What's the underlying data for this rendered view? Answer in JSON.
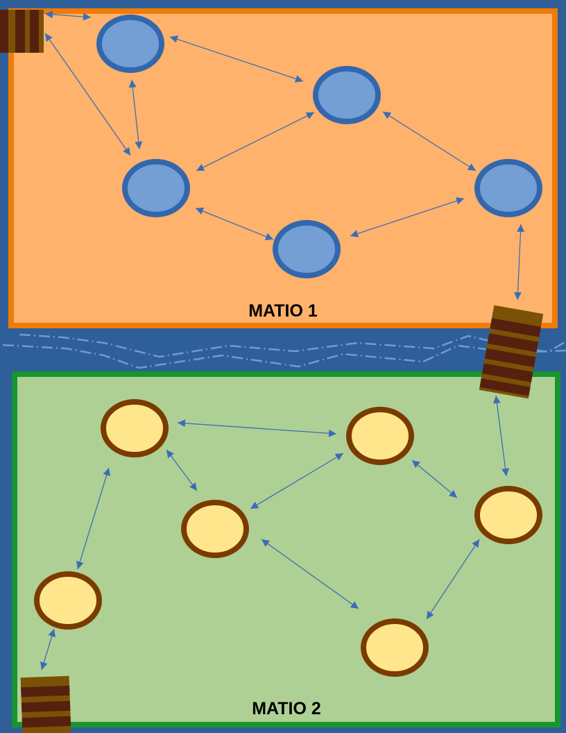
{
  "colors": {
    "background": "#2e5f99",
    "zone1_fill": "#ffb26b",
    "zone1_border": "#f07a0a",
    "zone2_fill": "#afd095",
    "zone2_border": "#17952f",
    "blue_node_fill": "#739fd5",
    "blue_node_border": "#3367ad",
    "yellow_node_fill": "#ffe68c",
    "yellow_node_border": "#7a3b00",
    "edge": "#3a6db5",
    "bridge_light": "#7a5206",
    "bridge_dark": "#56200f",
    "water_dash": "#6d9bd6"
  },
  "zones": [
    {
      "id": "matio-1",
      "label": "MATIO 1"
    },
    {
      "id": "matio-2",
      "label": "MATIO 2"
    }
  ],
  "bridges": [
    {
      "id": "bridge-top-left",
      "icon": "bridge-icon"
    },
    {
      "id": "bridge-right",
      "icon": "bridge-icon"
    },
    {
      "id": "bridge-bottom-left",
      "icon": "bridge-icon"
    }
  ]
}
